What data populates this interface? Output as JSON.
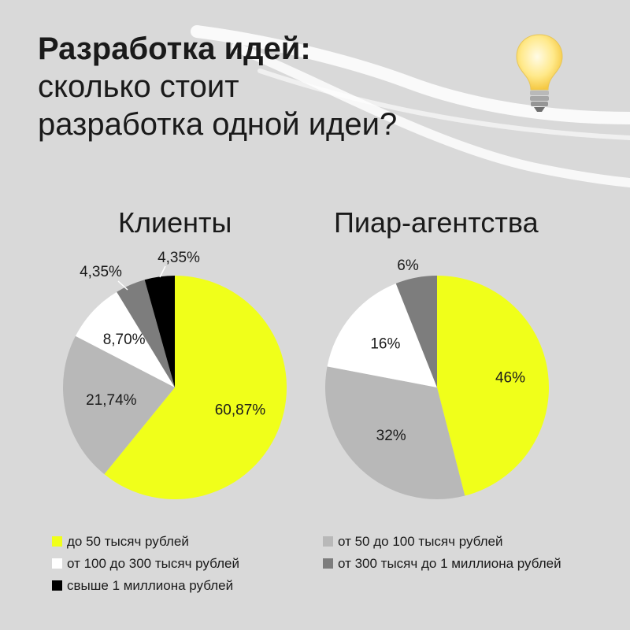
{
  "title": {
    "line1": "Разработка идей:",
    "line2": "сколько стоит",
    "line3": "разработка одной идеи?"
  },
  "icons": {
    "bulb": "light-bulb-icon"
  },
  "colors": {
    "background": "#d9d9d9",
    "yellow": "#f0ff1a",
    "light_gray": "#b8b8b8",
    "white": "#ffffff",
    "dark_gray": "#7d7d7d",
    "black": "#000000"
  },
  "chart_data": [
    {
      "type": "pie",
      "title": "Клиенты",
      "slices": [
        {
          "label": "до 50 тысяч рублей",
          "value": 60.87,
          "display": "60,87%",
          "color": "#f0ff1a"
        },
        {
          "label": "от 50 до 100 тысяч рублей",
          "value": 21.74,
          "display": "21,74%",
          "color": "#b8b8b8"
        },
        {
          "label": "от 100 до 300 тысяч рублей",
          "value": 8.7,
          "display": "8,70%",
          "color": "#ffffff"
        },
        {
          "label": "от 300 тысяч до 1 миллиона рублей",
          "value": 4.35,
          "display": "4,35%",
          "color": "#7d7d7d"
        },
        {
          "label": "свыше 1 миллиона рублей",
          "value": 4.35,
          "display": "4,35%",
          "color": "#000000"
        }
      ]
    },
    {
      "type": "pie",
      "title": "Пиар-агентства",
      "slices": [
        {
          "label": "до 50 тысяч рублей",
          "value": 46,
          "display": "46%",
          "color": "#f0ff1a"
        },
        {
          "label": "от 50 до 100 тысяч рублей",
          "value": 32,
          "display": "32%",
          "color": "#b8b8b8"
        },
        {
          "label": "от 100 до 300 тысяч рублей",
          "value": 16,
          "display": "16%",
          "color": "#ffffff"
        },
        {
          "label": "от 300 тысяч до 1 миллиона рублей",
          "value": 6,
          "display": "6%",
          "color": "#7d7d7d"
        }
      ]
    }
  ],
  "legend": [
    {
      "label": "до 50 тысяч рублей",
      "color": "#f0ff1a"
    },
    {
      "label": "от 50 до 100 тысяч рублей",
      "color": "#b8b8b8"
    },
    {
      "label": "от 100 до 300 тысяч рублей",
      "color": "#ffffff"
    },
    {
      "label": "от 300 тысяч до 1 миллиона рублей",
      "color": "#7d7d7d"
    },
    {
      "label": "свыше 1 миллиона рублей",
      "color": "#000000"
    }
  ]
}
